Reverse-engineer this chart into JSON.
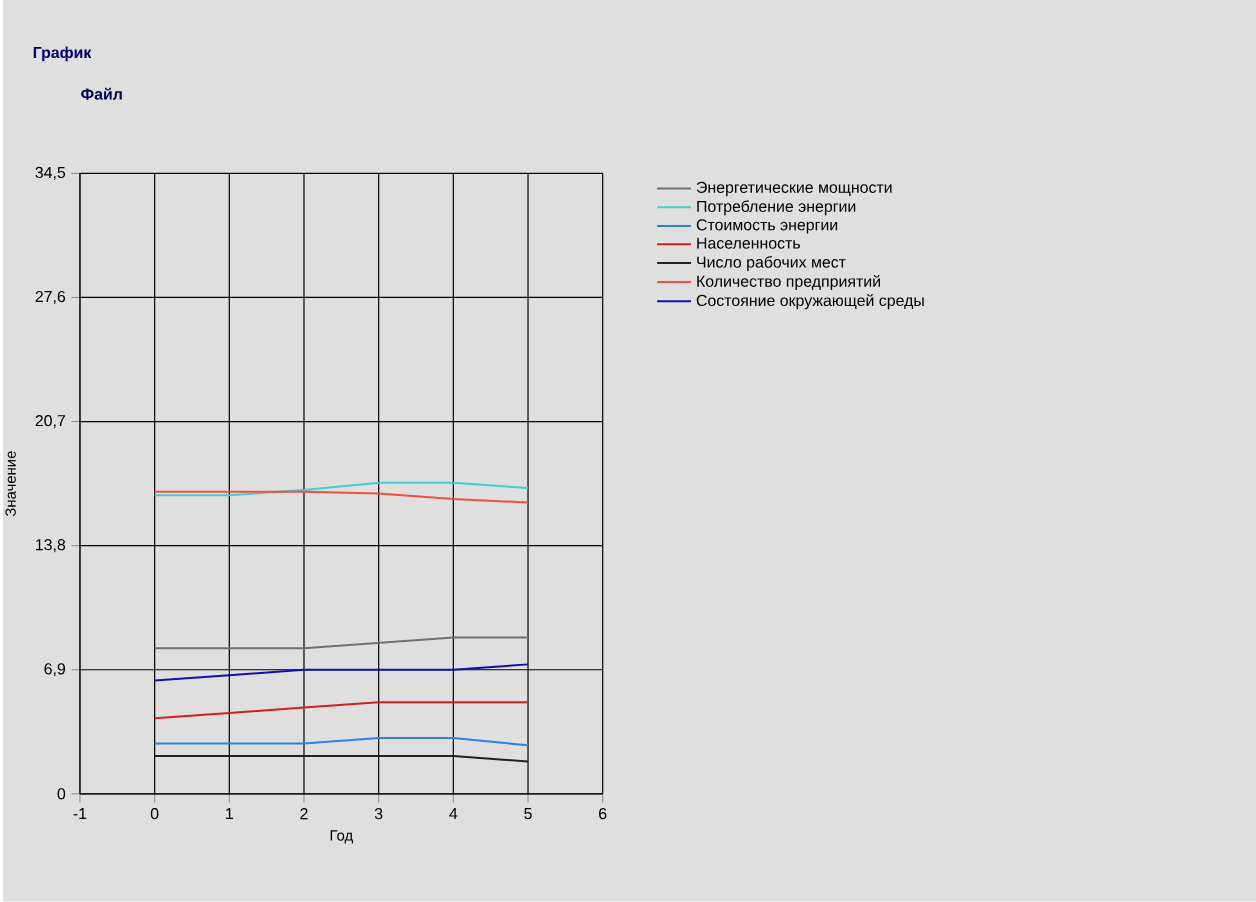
{
  "chart_data": {
    "type": "line",
    "title": "График",
    "annotations": [
      "Файл"
    ],
    "xlabel": "Год",
    "ylabel": "Значение",
    "x": [
      0,
      1,
      2,
      3,
      4,
      5
    ],
    "xlim": [
      -1,
      6
    ],
    "xticks": [
      -1,
      0,
      1,
      2,
      3,
      4,
      5,
      6
    ],
    "ylim": [
      0,
      34.5
    ],
    "yticks": [
      {
        "value": 0,
        "label": "0"
      },
      {
        "value": 6.9,
        "label": "6,9"
      },
      {
        "value": 13.8,
        "label": "13,8"
      },
      {
        "value": 20.7,
        "label": "20,7"
      },
      {
        "value": 27.6,
        "label": "27,6"
      },
      {
        "value": 34.5,
        "label": "34,5"
      }
    ],
    "grid": true,
    "legend": "top right",
    "marker": "none",
    "line_style": "solid",
    "series": [
      {
        "name": "Энергетические мощности",
        "color": "#707070",
        "values": [
          8.1,
          8.1,
          8.1,
          8.4,
          8.7,
          8.7
        ]
      },
      {
        "name": "Потребление энергии",
        "color": "#40d0d0",
        "values": [
          16.6,
          16.6,
          16.9,
          17.3,
          17.3,
          17.0
        ]
      },
      {
        "name": "Стоимость энергии",
        "color": "#3080e0",
        "values": [
          2.8,
          2.8,
          2.8,
          3.1,
          3.1,
          2.7
        ]
      },
      {
        "name": "Населенность",
        "color": "#d02020",
        "values": [
          4.2,
          4.5,
          4.8,
          5.1,
          5.1,
          5.1
        ]
      },
      {
        "name": "Число рабочих мест",
        "color": "#202020",
        "values": [
          2.1,
          2.1,
          2.1,
          2.1,
          2.1,
          1.8
        ]
      },
      {
        "name": "Количество предприятий",
        "color": "#f05040",
        "values": [
          16.8,
          16.8,
          16.8,
          16.7,
          16.4,
          16.2
        ]
      },
      {
        "name": "Состояние окружающей среды",
        "color": "#1010b0",
        "values": [
          6.3,
          6.6,
          6.9,
          6.9,
          6.9,
          7.2
        ]
      }
    ]
  }
}
